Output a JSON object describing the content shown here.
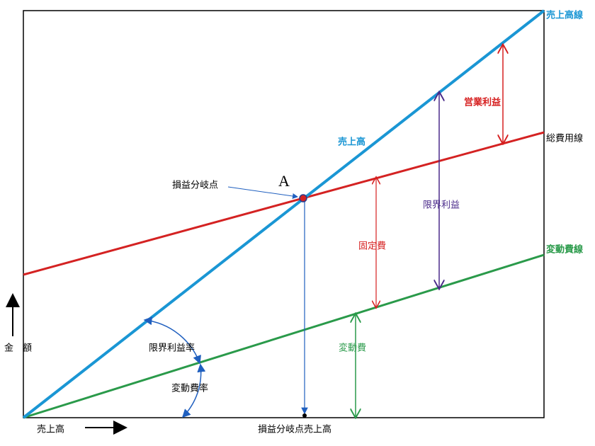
{
  "diagram": {
    "lines": {
      "sales": "売上高線",
      "total_cost": "総費用線",
      "variable_cost": "変動費線"
    },
    "sales_label": "売上高",
    "break_even_point": "損益分岐点",
    "point_label": "A",
    "operating_profit": "営業利益",
    "marginal_profit": "限界利益",
    "fixed_cost": "固定費",
    "variable_cost": "変動費",
    "marginal_profit_ratio": "限界利益率",
    "variable_cost_ratio": "変動費率",
    "y_axis": "金　額",
    "x_axis": "売上高",
    "break_even_sales": "損益分岐点売上高"
  }
}
